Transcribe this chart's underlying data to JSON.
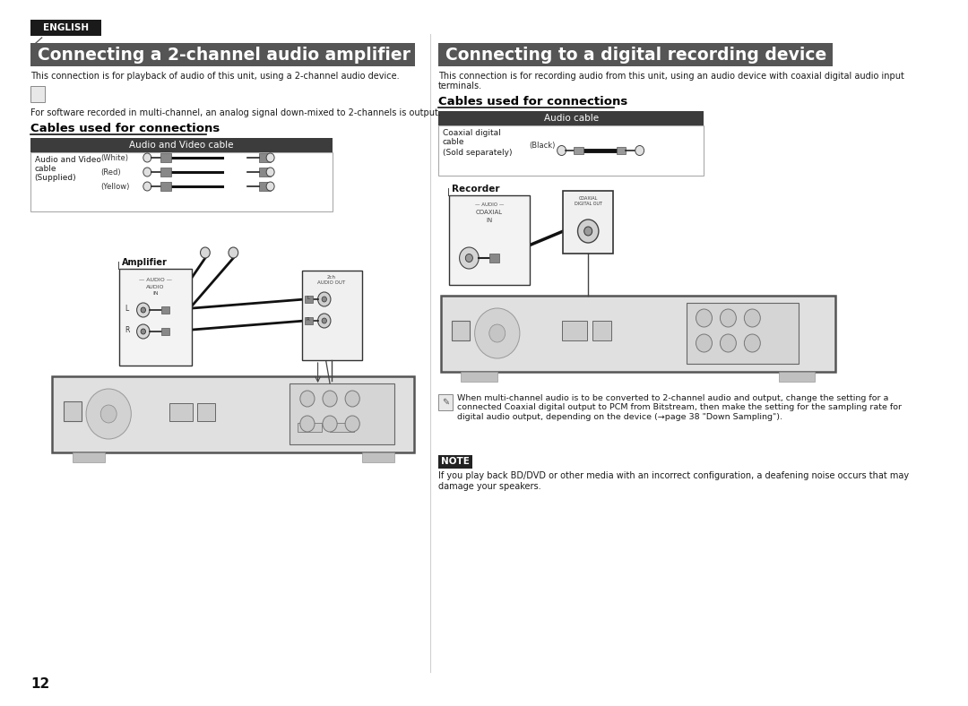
{
  "bg_color": "#ffffff",
  "page_number": "12",
  "english_label": "ENGLISH",
  "left_title": "Connecting a 2-channel audio amplifier",
  "right_title": "Connecting to a digital recording device",
  "left_desc": "This connection is for playback of audio of this unit, using a 2-channel audio device.",
  "left_note": "For software recorded in multi-channel, an analog signal down-mixed to 2-channels is output.",
  "right_desc1": "This connection is for recording audio from this unit, using an audio device with coaxial digital audio input",
  "right_desc2": "terminals.",
  "left_cables_header": "Cables used for connections",
  "right_cables_header": "Cables used for connections",
  "left_table_header": "Audio and Video cable",
  "right_table_header": "Audio cable",
  "left_col1_l1": "Audio and Video",
  "left_col1_l2": "cable",
  "left_col1_l3": "(Supplied)",
  "left_white": "(White)",
  "left_red": "(Red)",
  "left_yellow": "(Yellow)",
  "right_col1_l1": "Coaxial digital",
  "right_col1_l2": "cable",
  "right_col1_l3": "(Sold separately)",
  "right_black": "(Black)",
  "amplifier_label": "Amplifier",
  "recorder_label": "Recorder",
  "right_note": "When multi-channel audio is to be converted to 2-channel audio and output, change the setting for a\nconnected Coaxial digital output to PCM from Bitstream, then make the setting for the sampling rate for\ndigital audio output, depending on the device (→page 38 \"Down Sampling\").",
  "note_label": "NOTE",
  "note_text1": "If you play back BD/DVD or other media with an incorrect configuration, a deafening noise occurs that may",
  "note_text2": "damage your speakers.",
  "title_bar_color": "#555555",
  "table_header_color": "#3c3c3c",
  "eng_bg": "#1a1a1a",
  "note_bg": "#222222"
}
